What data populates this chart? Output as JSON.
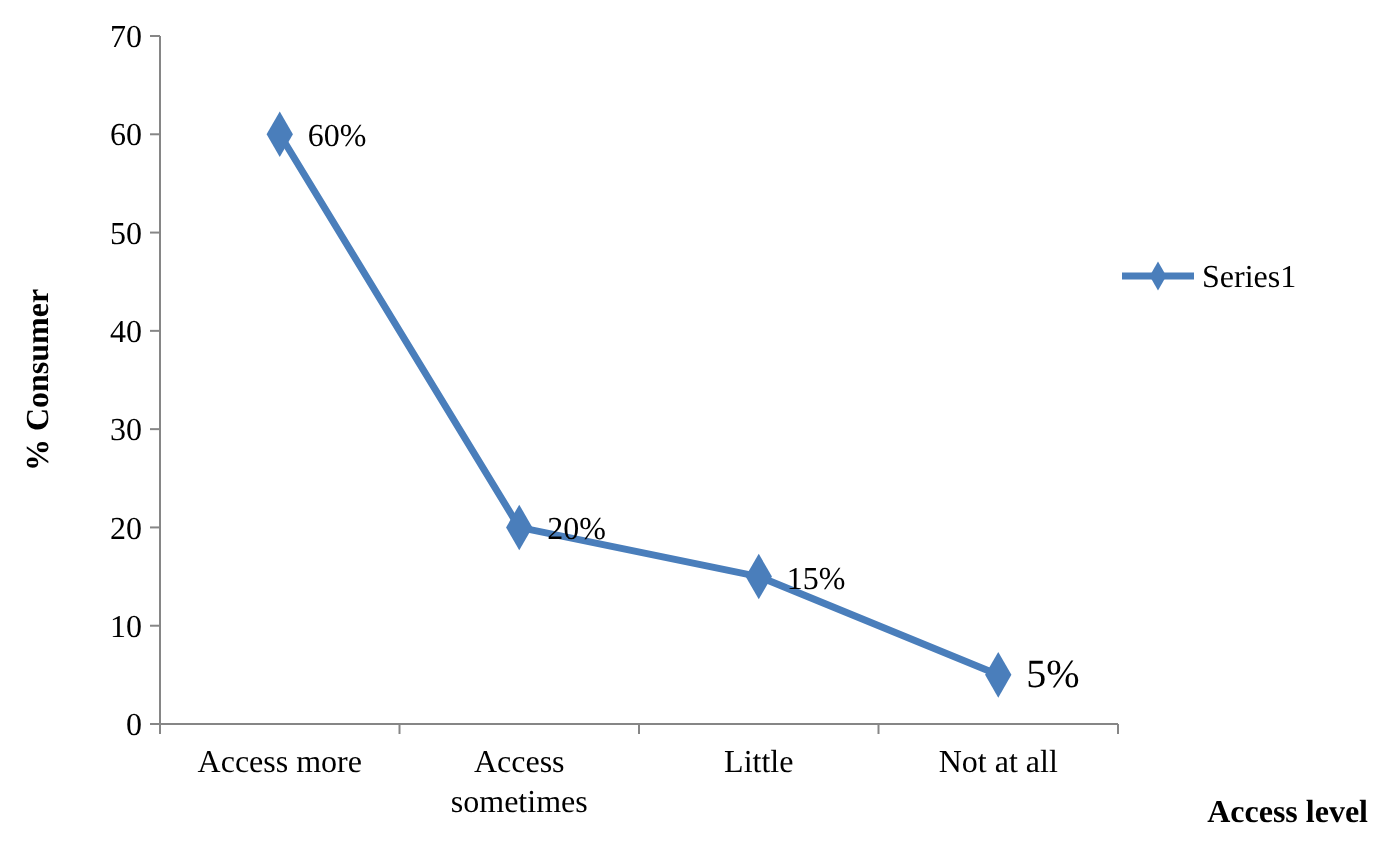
{
  "chart_data": {
    "type": "line",
    "xlabel": "Access level",
    "ylabel": "% Consumer",
    "categories": [
      "Access more",
      "Access sometimes",
      "Little",
      "Not at all"
    ],
    "series": [
      {
        "name": "Series1",
        "color": "#4a7ebb",
        "values": [
          60,
          20,
          15,
          5
        ],
        "value_labels": [
          "60%",
          "20%",
          "15%",
          "5%"
        ]
      }
    ],
    "ylim": [
      0,
      70
    ],
    "yticks": [
      0,
      10,
      20,
      30,
      40,
      50,
      60,
      70
    ],
    "grid": false,
    "legend": "right",
    "marker": "diamond",
    "line_style": "solid"
  }
}
